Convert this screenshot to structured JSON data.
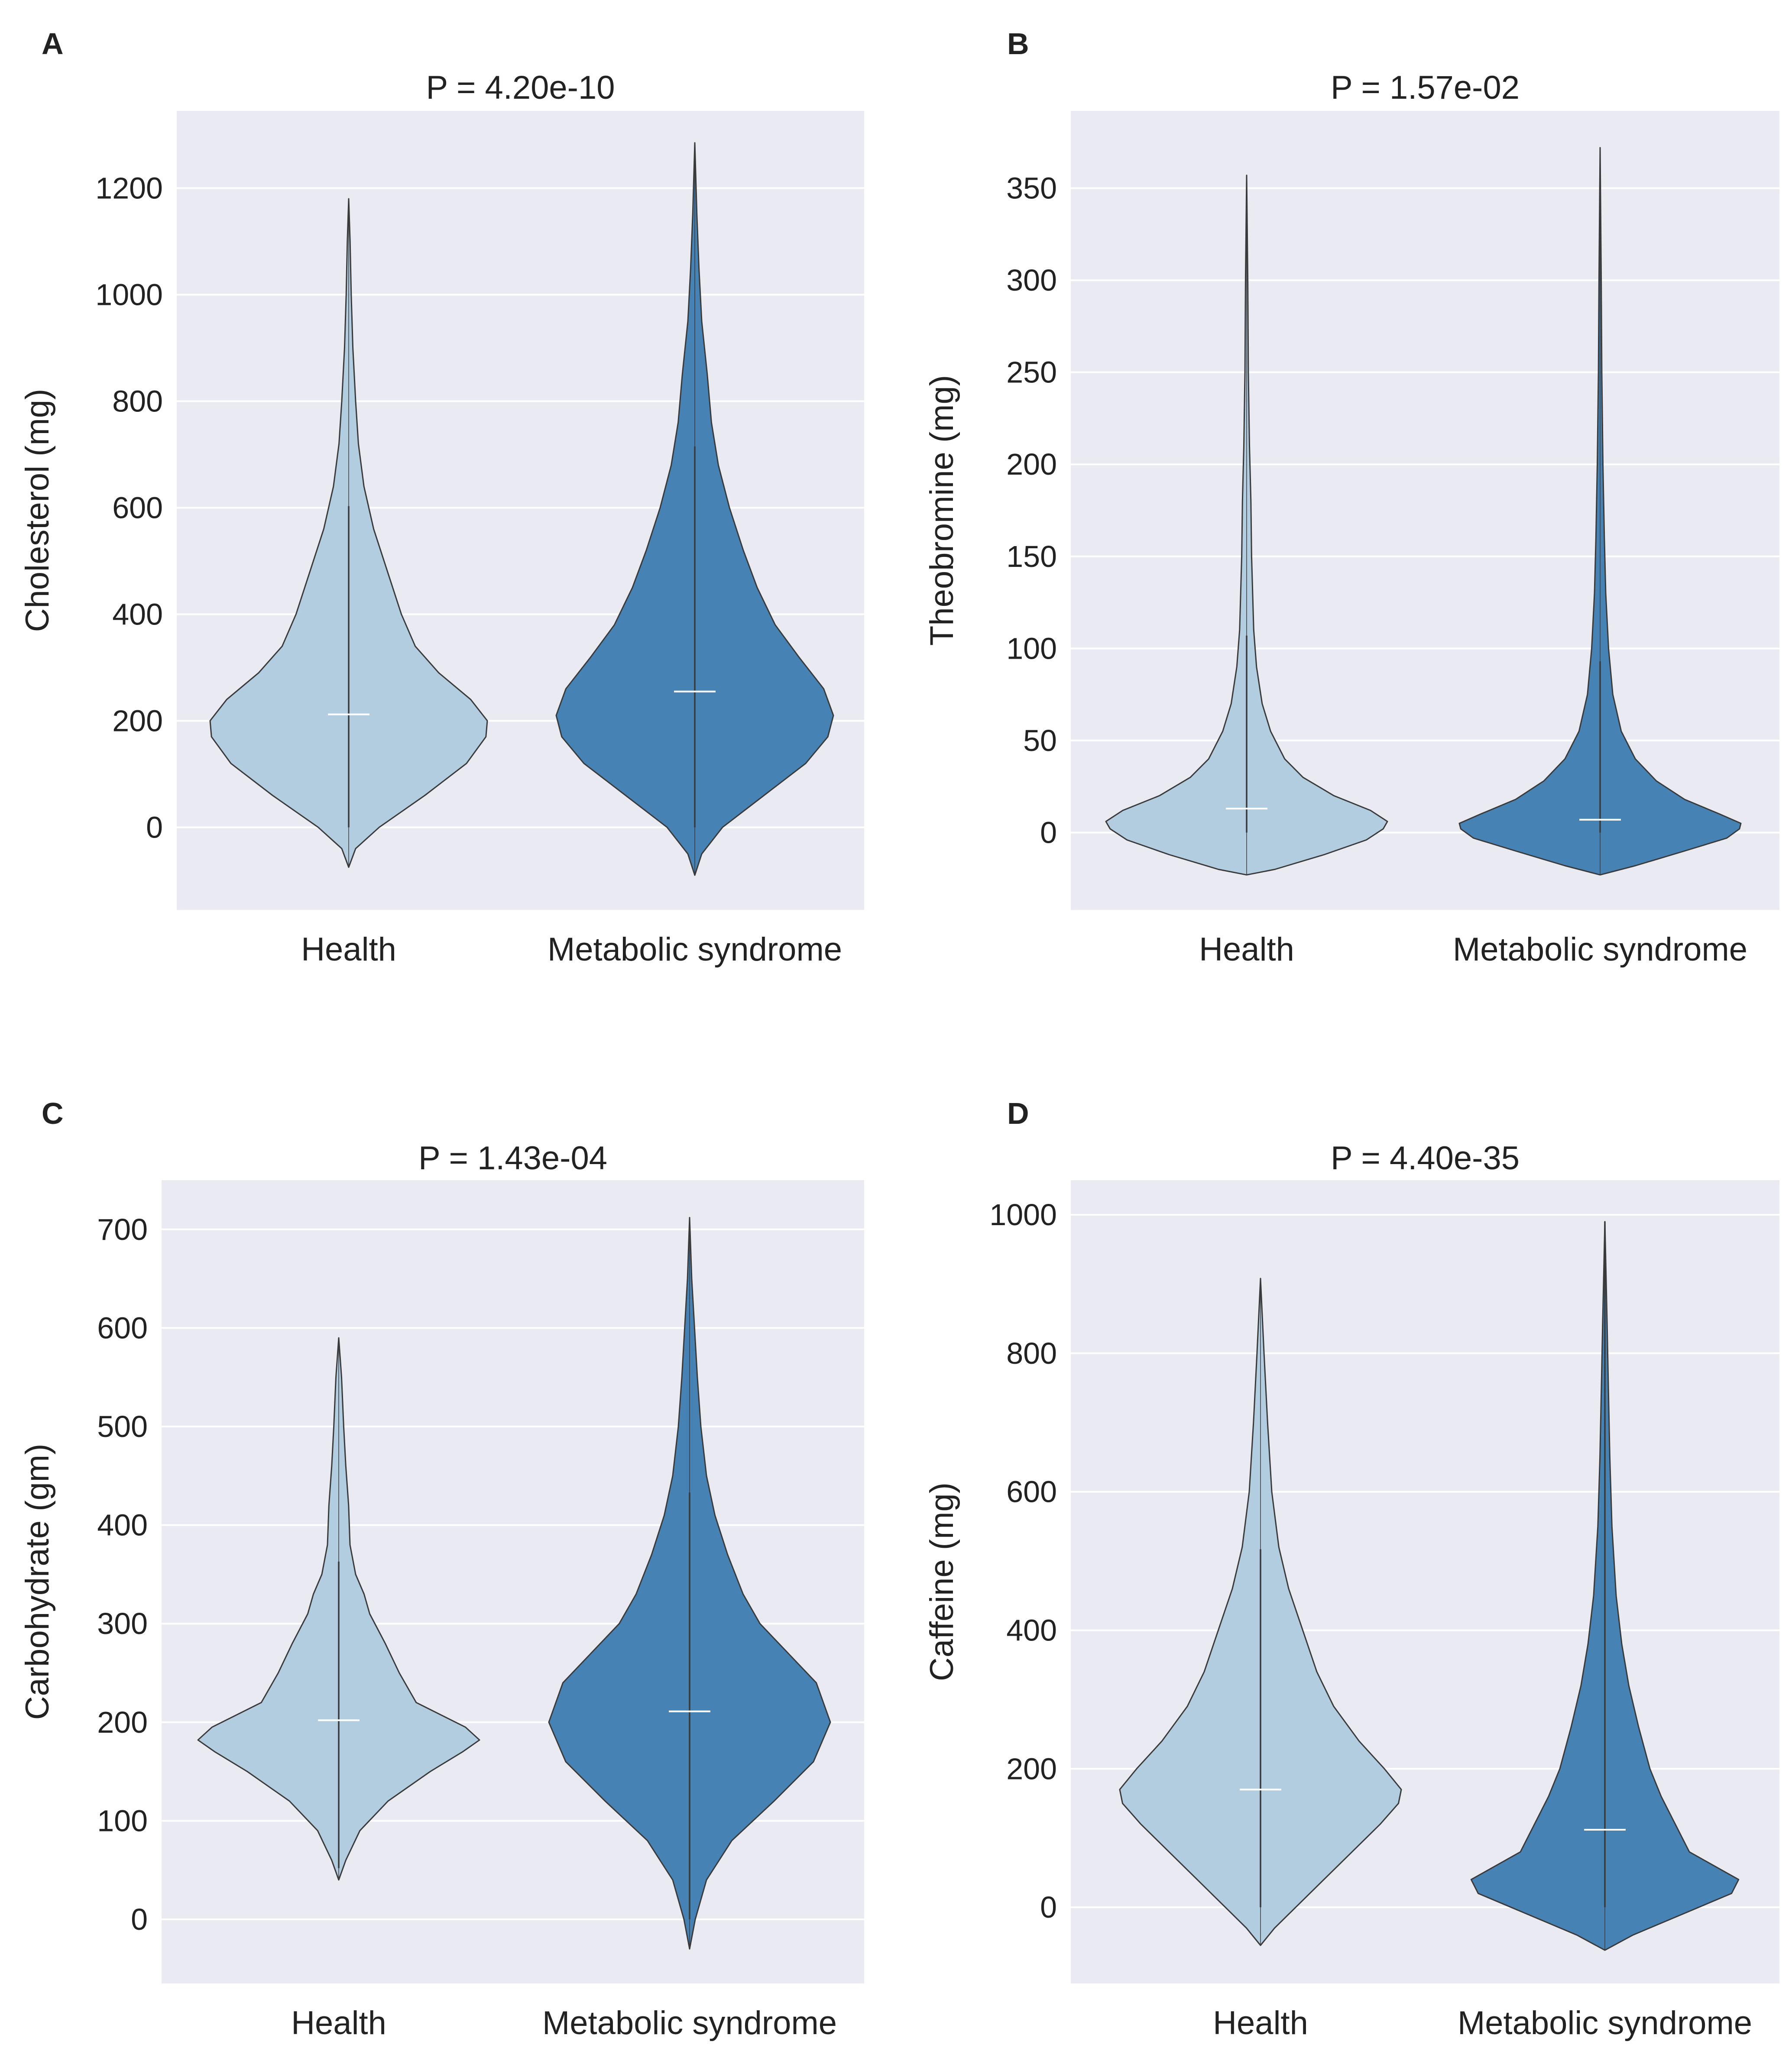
{
  "colors": {
    "health": "#b3cde0",
    "metabolic": "#4682b4",
    "background": "#eaeaf2"
  },
  "chart_data": [
    {
      "type": "violin",
      "panel": "A",
      "title": "P = 4.20e-10",
      "ylabel": "Cholesterol (mg)",
      "xlabel": "",
      "ylim": [
        -155,
        1345
      ],
      "yticks": [
        0,
        200,
        400,
        600,
        800,
        1000,
        1200
      ],
      "categories": [
        "Health",
        "Metabolic syndrome"
      ],
      "series": [
        {
          "name": "Health",
          "color": "#b3cde0",
          "median": 212,
          "whisker": [
            0,
            603
          ],
          "extent": [
            -75,
            1180
          ],
          "profile": [
            [
              -75,
              0
            ],
            [
              -40,
              0.05
            ],
            [
              0,
              0.22
            ],
            [
              60,
              0.55
            ],
            [
              120,
              0.85
            ],
            [
              170,
              0.99
            ],
            [
              200,
              1.0
            ],
            [
              240,
              0.88
            ],
            [
              290,
              0.65
            ],
            [
              340,
              0.48
            ],
            [
              400,
              0.38
            ],
            [
              480,
              0.28
            ],
            [
              560,
              0.18
            ],
            [
              640,
              0.11
            ],
            [
              720,
              0.07
            ],
            [
              800,
              0.05
            ],
            [
              900,
              0.03
            ],
            [
              1000,
              0.018
            ],
            [
              1100,
              0.01
            ],
            [
              1180,
              0
            ]
          ]
        },
        {
          "name": "Metabolic syndrome",
          "color": "#4682b4",
          "median": 255,
          "whisker": [
            0,
            715
          ],
          "extent": [
            -90,
            1285
          ],
          "profile": [
            [
              -90,
              0
            ],
            [
              -50,
              0.05
            ],
            [
              0,
              0.2
            ],
            [
              60,
              0.5
            ],
            [
              120,
              0.8
            ],
            [
              170,
              0.96
            ],
            [
              210,
              1.0
            ],
            [
              260,
              0.93
            ],
            [
              320,
              0.75
            ],
            [
              380,
              0.58
            ],
            [
              450,
              0.45
            ],
            [
              520,
              0.35
            ],
            [
              600,
              0.25
            ],
            [
              680,
              0.17
            ],
            [
              760,
              0.12
            ],
            [
              850,
              0.09
            ],
            [
              950,
              0.05
            ],
            [
              1050,
              0.03
            ],
            [
              1150,
              0.015
            ],
            [
              1285,
              0
            ]
          ]
        }
      ]
    },
    {
      "type": "violin",
      "panel": "B",
      "title": "P = 1.57e-02",
      "ylabel": "Theobromine (mg)",
      "xlabel": "",
      "ylim": [
        -42,
        392
      ],
      "yticks": [
        0,
        50,
        100,
        150,
        200,
        250,
        300,
        350
      ],
      "categories": [
        "Health",
        "Metabolic syndrome"
      ],
      "series": [
        {
          "name": "Health",
          "color": "#b3cde0",
          "median": 13,
          "whisker": [
            0,
            107
          ],
          "extent": [
            -23,
            357
          ],
          "profile": [
            [
              -23,
              0
            ],
            [
              -20,
              0.2
            ],
            [
              -12,
              0.55
            ],
            [
              -4,
              0.85
            ],
            [
              2,
              0.97
            ],
            [
              6,
              1.0
            ],
            [
              12,
              0.88
            ],
            [
              20,
              0.62
            ],
            [
              30,
              0.4
            ],
            [
              40,
              0.27
            ],
            [
              55,
              0.17
            ],
            [
              70,
              0.11
            ],
            [
              90,
              0.07
            ],
            [
              110,
              0.05
            ],
            [
              150,
              0.035
            ],
            [
              180,
              0.03
            ],
            [
              210,
              0.02
            ],
            [
              250,
              0.012
            ],
            [
              300,
              0.008
            ],
            [
              357,
              0
            ]
          ]
        },
        {
          "name": "Metabolic syndrome",
          "color": "#4682b4",
          "median": 7,
          "whisker": [
            0,
            93
          ],
          "extent": [
            -23,
            372
          ],
          "profile": [
            [
              -23,
              0
            ],
            [
              -18,
              0.25
            ],
            [
              -10,
              0.6
            ],
            [
              -3,
              0.9
            ],
            [
              2,
              0.99
            ],
            [
              5,
              1.0
            ],
            [
              10,
              0.85
            ],
            [
              18,
              0.6
            ],
            [
              28,
              0.4
            ],
            [
              40,
              0.25
            ],
            [
              55,
              0.15
            ],
            [
              75,
              0.09
            ],
            [
              100,
              0.06
            ],
            [
              130,
              0.04
            ],
            [
              160,
              0.03
            ],
            [
              200,
              0.02
            ],
            [
              250,
              0.012
            ],
            [
              300,
              0.008
            ],
            [
              372,
              0
            ]
          ]
        }
      ]
    },
    {
      "type": "violin",
      "panel": "C",
      "title": "P = 1.43e-04",
      "ylabel": "Carbohydrate (gm)",
      "xlabel": "",
      "ylim": [
        -65,
        750
      ],
      "yticks": [
        0,
        100,
        200,
        300,
        400,
        500,
        600,
        700
      ],
      "categories": [
        "Health",
        "Metabolic syndrome"
      ],
      "series": [
        {
          "name": "Health",
          "color": "#b3cde0",
          "median": 202,
          "whisker": [
            52,
            363
          ],
          "extent": [
            40,
            590
          ],
          "profile": [
            [
              40,
              0
            ],
            [
              60,
              0.05
            ],
            [
              90,
              0.15
            ],
            [
              120,
              0.35
            ],
            [
              150,
              0.65
            ],
            [
              170,
              0.88
            ],
            [
              182,
              1.0
            ],
            [
              195,
              0.9
            ],
            [
              220,
              0.55
            ],
            [
              250,
              0.43
            ],
            [
              280,
              0.33
            ],
            [
              310,
              0.22
            ],
            [
              330,
              0.18
            ],
            [
              350,
              0.12
            ],
            [
              380,
              0.08
            ],
            [
              420,
              0.07
            ],
            [
              460,
              0.05
            ],
            [
              500,
              0.035
            ],
            [
              550,
              0.02
            ],
            [
              590,
              0
            ]
          ]
        },
        {
          "name": "Metabolic syndrome",
          "color": "#4682b4",
          "median": 211,
          "whisker": [
            0,
            433
          ],
          "extent": [
            -30,
            712
          ],
          "profile": [
            [
              -30,
              0
            ],
            [
              0,
              0.04
            ],
            [
              40,
              0.12
            ],
            [
              80,
              0.3
            ],
            [
              120,
              0.6
            ],
            [
              160,
              0.88
            ],
            [
              200,
              1.0
            ],
            [
              240,
              0.9
            ],
            [
              270,
              0.7
            ],
            [
              300,
              0.5
            ],
            [
              330,
              0.38
            ],
            [
              370,
              0.27
            ],
            [
              410,
              0.18
            ],
            [
              450,
              0.12
            ],
            [
              500,
              0.08
            ],
            [
              550,
              0.055
            ],
            [
              600,
              0.035
            ],
            [
              650,
              0.015
            ],
            [
              712,
              0
            ]
          ]
        }
      ]
    },
    {
      "type": "violin",
      "panel": "D",
      "title": "P = 4.40e-35",
      "ylabel": "Caffeine (mg)",
      "xlabel": "",
      "ylim": [
        -110,
        1050
      ],
      "yticks": [
        0,
        200,
        400,
        600,
        800,
        1000
      ],
      "categories": [
        "Health",
        "Metabolic syndrome"
      ],
      "series": [
        {
          "name": "Health",
          "color": "#b3cde0",
          "median": 170,
          "whisker": [
            0,
            517
          ],
          "extent": [
            -55,
            908
          ],
          "profile": [
            [
              -55,
              0
            ],
            [
              -30,
              0.1
            ],
            [
              0,
              0.25
            ],
            [
              40,
              0.45
            ],
            [
              80,
              0.65
            ],
            [
              120,
              0.85
            ],
            [
              150,
              0.98
            ],
            [
              170,
              1.0
            ],
            [
              200,
              0.88
            ],
            [
              240,
              0.7
            ],
            [
              290,
              0.52
            ],
            [
              340,
              0.4
            ],
            [
              400,
              0.3
            ],
            [
              460,
              0.2
            ],
            [
              520,
              0.13
            ],
            [
              600,
              0.08
            ],
            [
              700,
              0.05
            ],
            [
              800,
              0.025
            ],
            [
              908,
              0
            ]
          ]
        },
        {
          "name": "Metabolic syndrome",
          "color": "#4682b4",
          "median": 112,
          "whisker": [
            0,
            990
          ],
          "extent": [
            -62,
            990
          ],
          "profile": [
            [
              -62,
              0
            ],
            [
              -40,
              0.2
            ],
            [
              -10,
              0.55
            ],
            [
              20,
              0.9
            ],
            [
              40,
              0.95
            ],
            [
              80,
              0.6
            ],
            [
              120,
              0.5
            ],
            [
              160,
              0.4
            ],
            [
              200,
              0.32
            ],
            [
              260,
              0.24
            ],
            [
              320,
              0.17
            ],
            [
              380,
              0.12
            ],
            [
              450,
              0.08
            ],
            [
              550,
              0.05
            ],
            [
              650,
              0.035
            ],
            [
              750,
              0.025
            ],
            [
              850,
              0.015
            ],
            [
              990,
              0
            ]
          ]
        }
      ]
    }
  ]
}
